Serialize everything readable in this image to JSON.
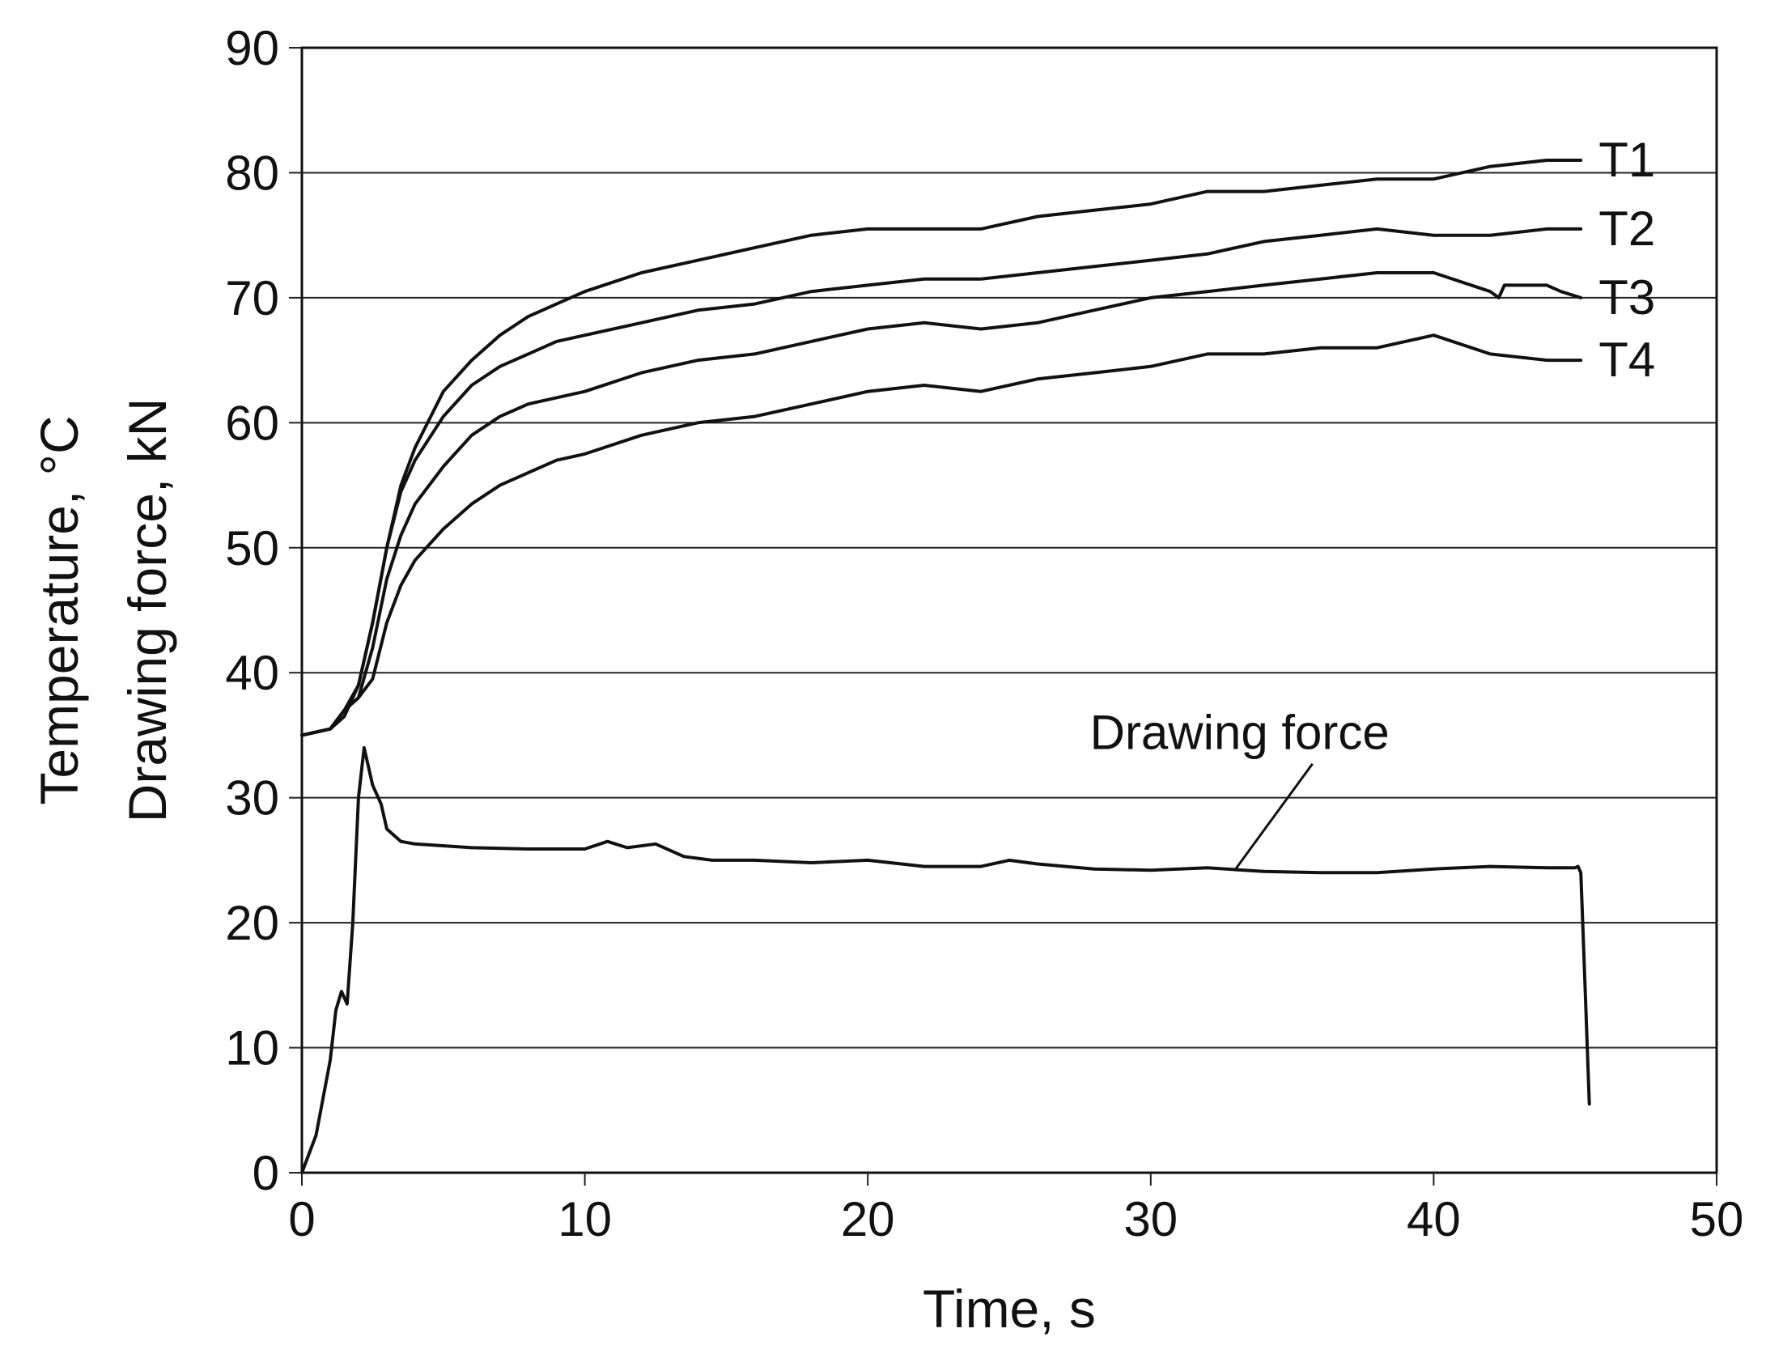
{
  "chart_data": {
    "type": "line",
    "xlabel": "Time, s",
    "ylabel_line1": "Temperature, °C",
    "ylabel_line2": "Drawing force, kN",
    "xlim": [
      0,
      50
    ],
    "ylim": [
      0,
      90
    ],
    "x_ticks": [
      0,
      10,
      20,
      30,
      40,
      50
    ],
    "y_ticks": [
      0,
      10,
      20,
      30,
      40,
      50,
      60,
      70,
      80,
      90
    ],
    "grid": "horizontal",
    "series": [
      {
        "name": "T1",
        "x": [
          0,
          1,
          1.5,
          2,
          2.5,
          3,
          3.5,
          4,
          5,
          6,
          7,
          8,
          9,
          10,
          12,
          14,
          16,
          18,
          20,
          22,
          24,
          26,
          28,
          30,
          32,
          34,
          36,
          38,
          40,
          42,
          44,
          45.2
        ],
        "y": [
          35,
          35.5,
          37,
          39,
          44,
          50,
          55,
          58,
          62.5,
          65,
          67,
          68.5,
          69.5,
          70.5,
          72,
          73,
          74,
          75,
          75.5,
          75.5,
          75.5,
          76.5,
          77,
          77.5,
          78.5,
          78.5,
          79,
          79.5,
          79.5,
          80.5,
          81,
          81
        ]
      },
      {
        "name": "T2",
        "x": [
          0,
          1,
          1.5,
          2,
          2.5,
          3,
          3.5,
          4,
          5,
          6,
          7,
          8,
          9,
          10,
          12,
          14,
          16,
          18,
          20,
          22,
          24,
          26,
          28,
          30,
          32,
          34,
          36,
          38,
          40,
          42,
          44,
          45.2
        ],
        "y": [
          35,
          35.5,
          36.5,
          39,
          44,
          50,
          54.5,
          57,
          60.5,
          63,
          64.5,
          65.5,
          66.5,
          67,
          68,
          69,
          69.5,
          70.5,
          71,
          71.5,
          71.5,
          72,
          72.5,
          73,
          73.5,
          74.5,
          75,
          75.5,
          75,
          75,
          75.5,
          75.5
        ]
      },
      {
        "name": "T3",
        "x": [
          0,
          1,
          1.5,
          2,
          2.5,
          3,
          3.5,
          4,
          5,
          6,
          7,
          8,
          9,
          10,
          12,
          14,
          16,
          18,
          20,
          22,
          24,
          26,
          28,
          30,
          32,
          34,
          36,
          38,
          40,
          42,
          42.3,
          42.5,
          43.5,
          44,
          44.5,
          45.2
        ],
        "y": [
          35,
          35.5,
          37,
          38,
          42,
          47.5,
          51,
          53.5,
          56.5,
          59,
          60.5,
          61.5,
          62,
          62.5,
          64,
          65,
          65.5,
          66.5,
          67.5,
          68,
          67.5,
          68,
          69,
          70,
          70.5,
          71,
          71.5,
          72,
          72,
          70.5,
          70,
          71,
          71,
          71,
          70.5,
          70
        ]
      },
      {
        "name": "T4",
        "x": [
          0,
          1,
          1.5,
          2,
          2.5,
          3,
          3.5,
          4,
          5,
          6,
          7,
          8,
          9,
          10,
          12,
          14,
          16,
          18,
          20,
          22,
          24,
          26,
          28,
          30,
          32,
          34,
          36,
          38,
          40,
          42,
          44,
          45.2
        ],
        "y": [
          35,
          35.5,
          37,
          38,
          39.5,
          44,
          47,
          49,
          51.5,
          53.5,
          55,
          56,
          57,
          57.5,
          59,
          60,
          60.5,
          61.5,
          62.5,
          63,
          62.5,
          63.5,
          64,
          64.5,
          65.5,
          65.5,
          66,
          66,
          67,
          65.5,
          65,
          65
        ]
      },
      {
        "name": "Drawing force",
        "x": [
          0,
          0.5,
          1,
          1.2,
          1.4,
          1.6,
          1.8,
          2.0,
          2.2,
          2.5,
          2.8,
          3,
          3.5,
          4,
          6,
          8,
          10,
          10.8,
          11.5,
          12.5,
          13.5,
          14.5,
          16,
          18,
          20,
          22,
          24,
          25,
          26,
          28,
          30,
          32,
          34,
          36,
          38,
          40,
          42,
          44,
          45,
          45.1,
          45.2,
          45.35,
          45.5
        ],
        "y": [
          0,
          3,
          9,
          13,
          14.5,
          13.5,
          20,
          30,
          34,
          31,
          29.5,
          27.5,
          26.5,
          26.3,
          26,
          25.9,
          25.9,
          26.5,
          26,
          26.3,
          25.3,
          25,
          25,
          24.8,
          25,
          24.5,
          24.5,
          25,
          24.7,
          24.3,
          24.2,
          24.4,
          24.1,
          24,
          24,
          24.3,
          24.5,
          24.4,
          24.4,
          24.5,
          24,
          15,
          5.5
        ]
      }
    ],
    "annotations": [
      {
        "text": "Drawing force",
        "x": 33,
        "y": 24.3
      }
    ]
  }
}
